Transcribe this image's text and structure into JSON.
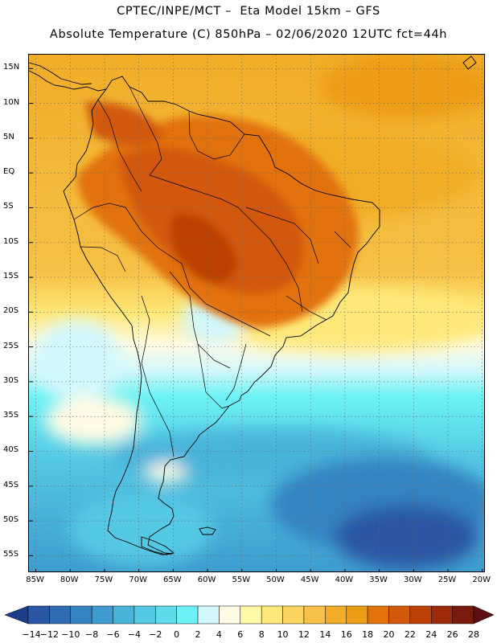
{
  "header": {
    "title_line1": "CPTEC/INPE/MCT –  Eta Model 15km – GFS",
    "title_line2": "Absolute Temperature (C) 850hPa – 02/06/2020 12UTC fct=44h"
  },
  "map": {
    "extent": {
      "lon_min": -86,
      "lon_max": -19.5,
      "lat_min": -57.5,
      "lat_max": 17
    },
    "lat_ticks": [
      {
        "value": 15,
        "label": "15N"
      },
      {
        "value": 10,
        "label": "10N"
      },
      {
        "value": 5,
        "label": "5N"
      },
      {
        "value": 0,
        "label": "EQ"
      },
      {
        "value": -5,
        "label": "5S"
      },
      {
        "value": -10,
        "label": "10S"
      },
      {
        "value": -15,
        "label": "15S"
      },
      {
        "value": -20,
        "label": "20S"
      },
      {
        "value": -25,
        "label": "25S"
      },
      {
        "value": -30,
        "label": "30S"
      },
      {
        "value": -35,
        "label": "35S"
      },
      {
        "value": -40,
        "label": "40S"
      },
      {
        "value": -45,
        "label": "45S"
      },
      {
        "value": -50,
        "label": "50S"
      },
      {
        "value": -55,
        "label": "55S"
      }
    ],
    "lon_ticks": [
      {
        "value": -85,
        "label": "85W"
      },
      {
        "value": -80,
        "label": "80W"
      },
      {
        "value": -75,
        "label": "75W"
      },
      {
        "value": -70,
        "label": "70W"
      },
      {
        "value": -65,
        "label": "65W"
      },
      {
        "value": -60,
        "label": "60W"
      },
      {
        "value": -55,
        "label": "55W"
      },
      {
        "value": -50,
        "label": "50W"
      },
      {
        "value": -45,
        "label": "45W"
      },
      {
        "value": -40,
        "label": "40W"
      },
      {
        "value": -35,
        "label": "35W"
      },
      {
        "value": -30,
        "label": "30W"
      },
      {
        "value": -25,
        "label": "25W"
      },
      {
        "value": -20,
        "label": "20W"
      }
    ],
    "grid": true
  },
  "colorbar": {
    "labels": [
      "-14",
      "-12",
      "-10",
      "-8",
      "-6",
      "-4",
      "-2",
      "0",
      "2",
      "4",
      "6",
      "8",
      "10",
      "12",
      "14",
      "16",
      "18",
      "20",
      "22",
      "24",
      "26",
      "28"
    ],
    "colors": [
      "#1e3c8c",
      "#2a56a4",
      "#2f6cb4",
      "#3584c2",
      "#3e9ccf",
      "#49b4da",
      "#55c8e4",
      "#5edcec",
      "#6cf2f4",
      "#d2f7fc",
      "#fffbe4",
      "#fff8a6",
      "#ffe87a",
      "#fbd460",
      "#f6c146",
      "#f1ad28",
      "#ec9c14",
      "#e2720a",
      "#d2580a",
      "#bc4106",
      "#9c2a08",
      "#7a1a0c",
      "#5e0e10"
    ]
  }
}
